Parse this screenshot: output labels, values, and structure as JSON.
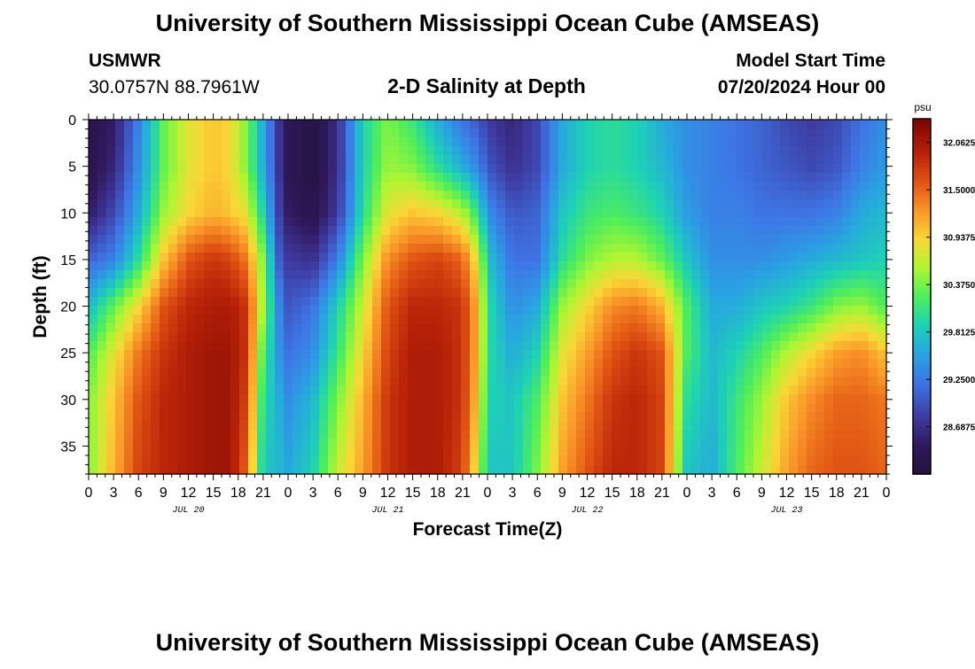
{
  "page": {
    "title": "University of Southern Mississippi Ocean Cube (AMSEAS)",
    "footer_title": "University of Southern Mississippi Ocean Cube (AMSEAS)",
    "station": "USMWR",
    "coords": "30.0757N  88.7961W",
    "model_start_label": "Model Start Time",
    "model_start_value": "07/20/2024 Hour 00",
    "subtitle": "2-D Salinity at Depth"
  },
  "chart_data": {
    "type": "heatmap",
    "title": "2-D Salinity at Depth",
    "xlabel": "Forecast Time(Z)",
    "ylabel": "Depth (ft)",
    "x_range_hours": [
      0,
      96
    ],
    "ylim": [
      0,
      38
    ],
    "y_ticks": [
      0,
      5,
      10,
      15,
      20,
      25,
      30,
      35
    ],
    "x_tick_labels": [
      "0",
      "3",
      "6",
      "9",
      "12",
      "15",
      "18",
      "21",
      "0",
      "3",
      "6",
      "9",
      "12",
      "15",
      "18",
      "21",
      "0",
      "3",
      "6",
      "9",
      "12",
      "15",
      "18",
      "21",
      "0",
      "3",
      "6",
      "9",
      "12",
      "15",
      "18",
      "21",
      "0"
    ],
    "day_labels": [
      "JUL 20",
      "JUL 21",
      "JUL 22",
      "JUL 23"
    ],
    "colorbar": {
      "unit": "psu",
      "min": 28.125,
      "max": 32.34375,
      "tick_labels": [
        "32.06250",
        "31.50000",
        "30.93750",
        "30.37500",
        "29.81250",
        "29.25000",
        "28.68750"
      ],
      "tick_values": [
        32.0625,
        31.5,
        30.9375,
        30.375,
        29.8125,
        29.25,
        28.6875
      ]
    },
    "salinity_profiles_psu": {
      "depths_ft": [
        0,
        5,
        10,
        15,
        20,
        25,
        30,
        38
      ],
      "hours": [
        0,
        3,
        6,
        9,
        12,
        15,
        17,
        19,
        21,
        23,
        24,
        27,
        30,
        33,
        36,
        39,
        42,
        45,
        47,
        48,
        51,
        54,
        57,
        60,
        63,
        66,
        69,
        72,
        75,
        78,
        81,
        84,
        87,
        90,
        93,
        96
      ],
      "values": [
        [
          28.3,
          28.3,
          28.5,
          29.1,
          29.7,
          30.2,
          30.4,
          30.4
        ],
        [
          28.5,
          28.6,
          28.9,
          29.3,
          30.3,
          30.8,
          31.0,
          31.1
        ],
        [
          29.3,
          29.4,
          29.6,
          30.0,
          30.9,
          31.4,
          31.6,
          31.7
        ],
        [
          30.3,
          30.3,
          30.5,
          31.0,
          31.6,
          31.8,
          31.9,
          31.9
        ],
        [
          30.8,
          30.8,
          30.9,
          31.6,
          31.9,
          32.0,
          32.0,
          32.0
        ],
        [
          31.0,
          31.0,
          31.1,
          31.8,
          32.0,
          32.1,
          32.1,
          32.1
        ],
        [
          30.9,
          30.9,
          31.0,
          31.7,
          32.0,
          32.1,
          32.1,
          32.1
        ],
        [
          30.4,
          30.4,
          30.8,
          31.4,
          31.8,
          31.8,
          31.7,
          31.5
        ],
        [
          29.6,
          29.6,
          29.9,
          30.4,
          30.5,
          30.2,
          30.0,
          29.8
        ],
        [
          28.7,
          28.7,
          28.8,
          29.0,
          29.3,
          29.4,
          29.6,
          29.7
        ],
        [
          28.4,
          28.4,
          28.5,
          28.8,
          29.0,
          29.2,
          29.4,
          29.6
        ],
        [
          28.2,
          28.2,
          28.3,
          28.7,
          29.2,
          29.4,
          29.7,
          29.9
        ],
        [
          28.7,
          28.7,
          28.8,
          29.3,
          29.9,
          30.1,
          30.4,
          30.7
        ],
        [
          29.9,
          29.9,
          30.0,
          30.4,
          30.7,
          30.9,
          31.1,
          31.2
        ],
        [
          30.4,
          30.5,
          30.8,
          31.3,
          31.6,
          31.7,
          31.8,
          31.8
        ],
        [
          30.1,
          30.4,
          31.0,
          31.6,
          31.9,
          32.0,
          32.0,
          32.0
        ],
        [
          29.6,
          30.0,
          30.9,
          31.7,
          31.9,
          32.0,
          32.0,
          32.0
        ],
        [
          29.2,
          29.6,
          30.6,
          31.5,
          31.8,
          31.8,
          31.8,
          31.7
        ],
        [
          29.0,
          29.3,
          30.0,
          30.7,
          31.0,
          31.0,
          30.9,
          30.6
        ],
        [
          28.8,
          29.0,
          29.4,
          29.8,
          30.0,
          30.0,
          29.9,
          29.8
        ],
        [
          28.6,
          28.7,
          29.0,
          29.2,
          29.4,
          29.6,
          29.8,
          29.8
        ],
        [
          28.9,
          28.9,
          29.1,
          29.2,
          29.6,
          29.9,
          30.2,
          30.4
        ],
        [
          29.6,
          29.6,
          29.8,
          30.0,
          30.5,
          30.8,
          31.0,
          31.2
        ],
        [
          29.9,
          29.9,
          30.1,
          30.4,
          30.9,
          31.2,
          31.4,
          31.6
        ],
        [
          30.0,
          30.0,
          30.2,
          30.6,
          31.3,
          31.6,
          31.8,
          31.9
        ],
        [
          29.9,
          29.9,
          30.1,
          30.6,
          31.4,
          31.8,
          31.9,
          31.9
        ],
        [
          29.6,
          29.7,
          29.9,
          30.3,
          31.1,
          31.6,
          31.7,
          31.7
        ],
        [
          29.4,
          29.4,
          29.5,
          29.8,
          30.2,
          30.2,
          30.0,
          29.8
        ],
        [
          29.3,
          29.3,
          29.3,
          29.4,
          29.6,
          29.7,
          29.7,
          29.6
        ],
        [
          29.2,
          29.2,
          29.3,
          29.4,
          29.6,
          29.9,
          30.1,
          30.2
        ],
        [
          29.1,
          29.1,
          29.2,
          29.4,
          29.8,
          30.2,
          30.5,
          30.7
        ],
        [
          28.9,
          29.0,
          29.2,
          29.5,
          29.9,
          30.6,
          31.0,
          31.2
        ],
        [
          28.8,
          28.9,
          29.2,
          29.6,
          30.1,
          30.9,
          31.3,
          31.5
        ],
        [
          28.9,
          29.0,
          29.3,
          29.7,
          30.4,
          31.2,
          31.5,
          31.6
        ],
        [
          29.2,
          29.3,
          29.6,
          29.8,
          30.5,
          31.3,
          31.5,
          31.6
        ],
        [
          29.4,
          29.5,
          29.7,
          29.9,
          30.2,
          31.0,
          31.4,
          31.5
        ]
      ]
    }
  }
}
